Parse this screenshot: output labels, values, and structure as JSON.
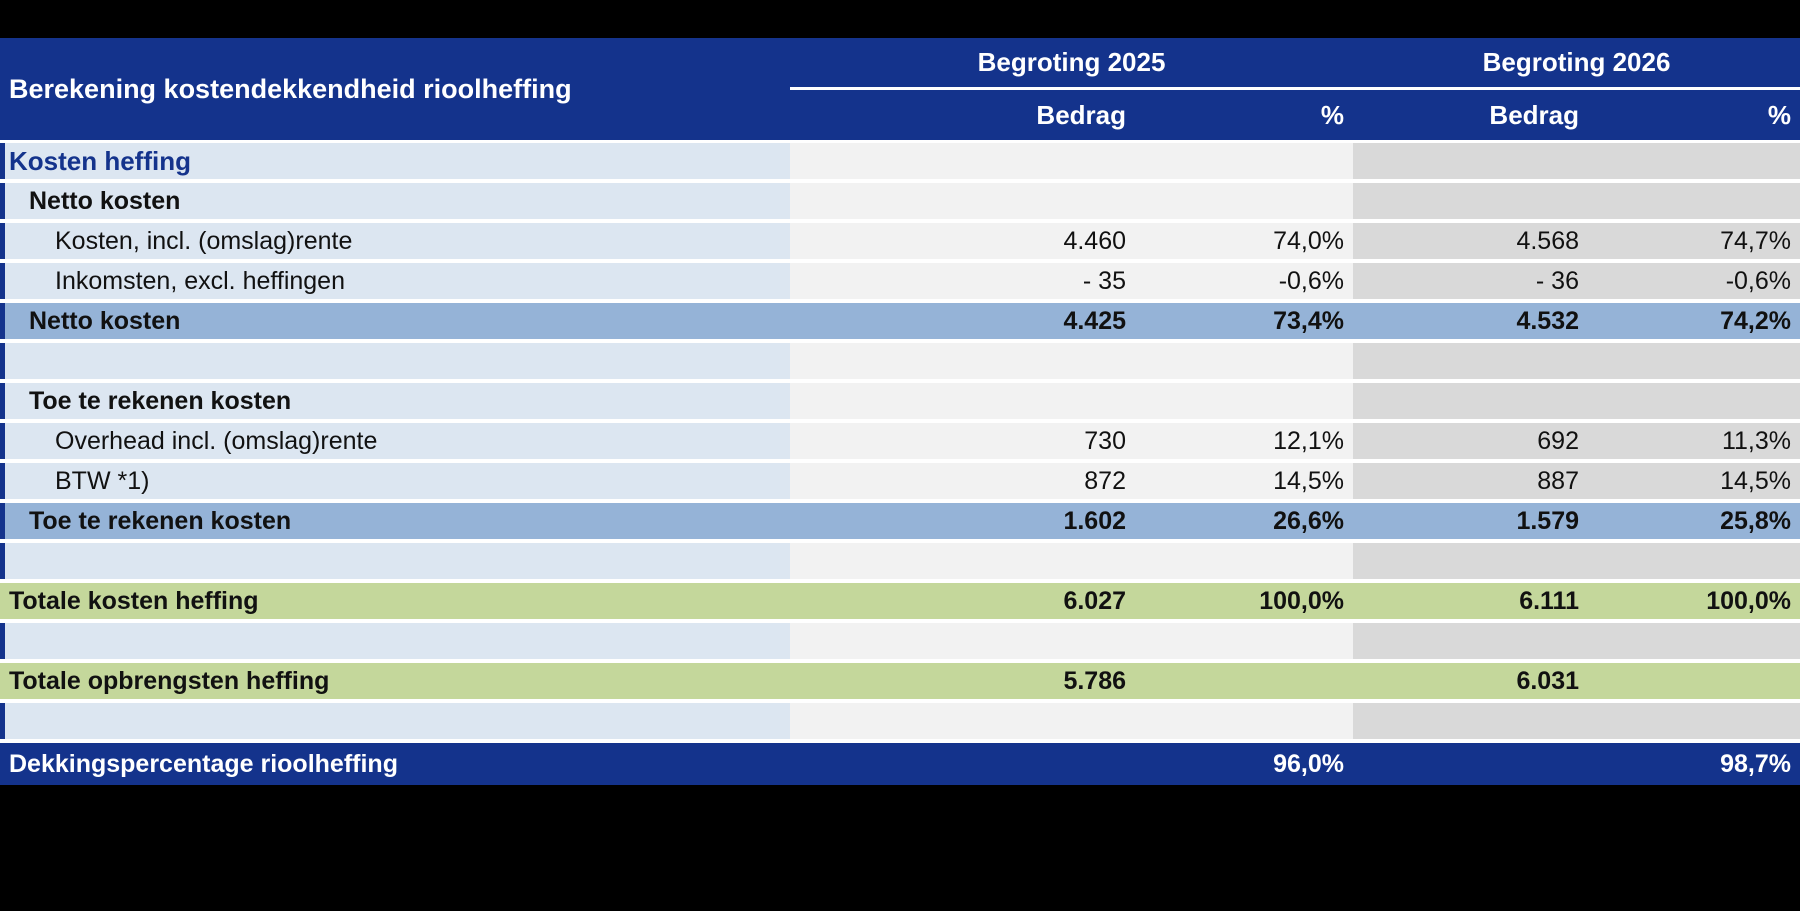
{
  "table": {
    "title": "Berekening kostendekkendheid rioolheffing",
    "column_groups": [
      {
        "label": "Begroting 2025",
        "sub": [
          "Bedrag",
          "%"
        ]
      },
      {
        "label": "Begroting 2026",
        "sub": [
          "Bedrag",
          "%"
        ]
      }
    ],
    "rows": [
      {
        "type": "section",
        "label": "Kosten heffing",
        "values": [
          "",
          "",
          "",
          ""
        ]
      },
      {
        "type": "subheader",
        "label": "Netto kosten",
        "values": [
          "",
          "",
          "",
          ""
        ]
      },
      {
        "type": "item",
        "label": "Kosten, incl. (omslag)rente",
        "values": [
          "4.460",
          "74,0%",
          "4.568",
          "74,7%"
        ]
      },
      {
        "type": "item",
        "label": "Inkomsten, excl. heffingen",
        "values": [
          "- 35",
          "-0,6%",
          "- 36",
          "-0,6%"
        ]
      },
      {
        "type": "total-blue",
        "label": "Netto kosten",
        "values": [
          "4.425",
          "73,4%",
          "4.532",
          "74,2%"
        ]
      },
      {
        "type": "spacer",
        "label": "",
        "values": [
          "",
          "",
          "",
          ""
        ]
      },
      {
        "type": "subheader",
        "label": "Toe te rekenen kosten",
        "values": [
          "",
          "",
          "",
          ""
        ]
      },
      {
        "type": "item",
        "label": "Overhead incl. (omslag)rente",
        "values": [
          "730",
          "12,1%",
          "692",
          "11,3%"
        ]
      },
      {
        "type": "item",
        "label": "BTW *1)",
        "values": [
          "872",
          "14,5%",
          "887",
          "14,5%"
        ]
      },
      {
        "type": "total-blue",
        "label": "Toe te rekenen kosten",
        "values": [
          "1.602",
          "26,6%",
          "1.579",
          "25,8%"
        ]
      },
      {
        "type": "spacer",
        "label": "",
        "values": [
          "",
          "",
          "",
          ""
        ]
      },
      {
        "type": "total-green",
        "label": "Totale kosten heffing",
        "values": [
          "6.027",
          "100,0%",
          "6.111",
          "100,0%"
        ]
      },
      {
        "type": "spacer",
        "label": "",
        "values": [
          "",
          "",
          "",
          ""
        ]
      },
      {
        "type": "total-green",
        "label": "Totale opbrengsten heffing",
        "values": [
          "5.786",
          "",
          "6.031",
          ""
        ]
      },
      {
        "type": "spacer",
        "label": "",
        "values": [
          "",
          "",
          "",
          ""
        ]
      },
      {
        "type": "total-navy",
        "label": "Dekkingspercentage rioolheffing",
        "values": [
          "",
          "96,0%",
          "",
          "98,7%"
        ]
      }
    ]
  },
  "colors": {
    "header_navy": "#14338C",
    "label_light_blue": "#DCE6F1",
    "subtotal_steel_blue": "#95B3D7",
    "total_green": "#C4D79B",
    "col_2025_gray": "#F2F2F2",
    "col_2026_gray": "#D9D9D9",
    "separator_white": "#FFFFFF",
    "page_background": "#000000"
  }
}
